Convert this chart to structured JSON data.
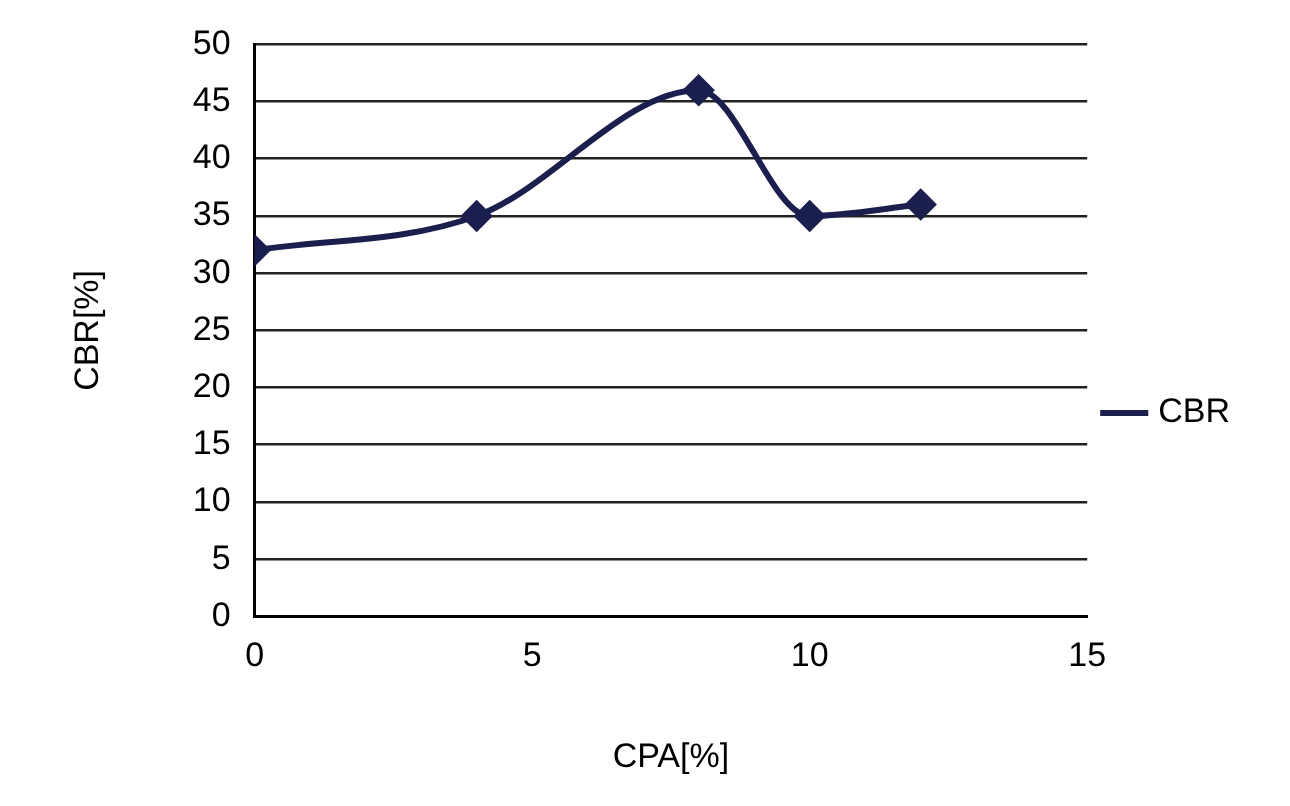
{
  "chart_data": {
    "type": "line",
    "xlabel": "CPA[%]",
    "ylabel": "CBR[%]",
    "x": [
      0,
      4,
      8,
      10,
      12
    ],
    "series": [
      {
        "name": "CBR",
        "color": "#1a1f4e",
        "values": [
          32,
          35,
          46,
          35,
          36
        ]
      }
    ],
    "xlim": [
      0,
      15
    ],
    "xticks": [
      0,
      5,
      10,
      15
    ],
    "ylim": [
      0,
      50
    ],
    "yticks": [
      0,
      5,
      10,
      15,
      20,
      25,
      30,
      35,
      40,
      45,
      50
    ],
    "grid": "y",
    "legend": "right",
    "marker": "diamond"
  }
}
